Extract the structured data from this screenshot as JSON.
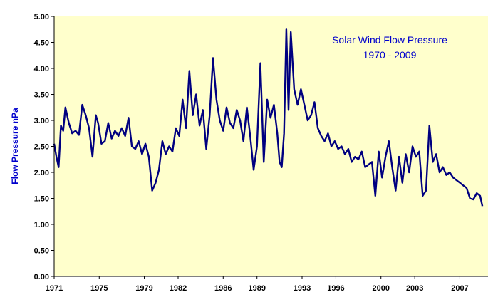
{
  "colors": {
    "background": "#ffffff",
    "plot_background": "#ffffcc",
    "line": "#000080",
    "title": "#0000cc",
    "axis": "#000000"
  },
  "chart_data": {
    "type": "line",
    "title": "Solar Wind Flow Pressure",
    "subtitle": "1970 - 2009",
    "xlabel": "",
    "ylabel": "Flow Pressure nPa",
    "legend": "none",
    "grid": false,
    "xlim": [
      1971,
      2009.5
    ],
    "ylim": [
      0,
      5
    ],
    "y_ticks": [
      "0.00",
      "0.50",
      "1.00",
      "1.50",
      "2.00",
      "2.50",
      "3.00",
      "3.50",
      "4.00",
      "4.50",
      "5.00"
    ],
    "x_tick_labels": [
      "1971",
      "1975",
      "1979",
      "1982",
      "1986",
      "1989",
      "1993",
      "1996",
      "2000",
      "2003",
      "2007"
    ],
    "x_tick_values": [
      1971,
      1975,
      1979,
      1982,
      1986,
      1989,
      1993,
      1996,
      2000,
      2003,
      2007
    ],
    "series": [
      {
        "name": "",
        "x": [
          1971.0,
          1971.2,
          1971.4,
          1971.6,
          1971.8,
          1972.0,
          1972.3,
          1972.6,
          1972.9,
          1973.2,
          1973.5,
          1973.8,
          1974.1,
          1974.4,
          1974.7,
          1974.9,
          1975.2,
          1975.5,
          1975.8,
          1976.1,
          1976.4,
          1976.7,
          1977.0,
          1977.3,
          1977.6,
          1977.9,
          1978.2,
          1978.5,
          1978.8,
          1979.1,
          1979.4,
          1979.7,
          1980.0,
          1980.3,
          1980.6,
          1980.9,
          1981.2,
          1981.5,
          1981.8,
          1982.1,
          1982.4,
          1982.7,
          1983.0,
          1983.3,
          1983.6,
          1983.9,
          1984.2,
          1984.5,
          1984.8,
          1985.1,
          1985.4,
          1985.7,
          1986.0,
          1986.3,
          1986.6,
          1986.9,
          1987.2,
          1987.5,
          1987.8,
          1988.1,
          1988.4,
          1988.7,
          1989.0,
          1989.3,
          1989.6,
          1989.9,
          1990.2,
          1990.5,
          1990.8,
          1991.0,
          1991.2,
          1991.4,
          1991.6,
          1991.8,
          1992.0,
          1992.3,
          1992.6,
          1992.9,
          1993.2,
          1993.5,
          1993.8,
          1994.1,
          1994.4,
          1994.7,
          1995.0,
          1995.3,
          1995.6,
          1995.9,
          1996.2,
          1996.5,
          1996.8,
          1997.1,
          1997.4,
          1997.7,
          1998.0,
          1998.3,
          1998.6,
          1998.9,
          1999.2,
          1999.5,
          1999.8,
          2000.1,
          2000.4,
          2000.7,
          2001.0,
          2001.3,
          2001.6,
          2001.9,
          2002.2,
          2002.5,
          2002.8,
          2003.1,
          2003.4,
          2003.7,
          2004.0,
          2004.3,
          2004.6,
          2004.9,
          2005.2,
          2005.5,
          2005.8,
          2006.1,
          2006.4,
          2006.7,
          2007.0,
          2007.3,
          2007.6,
          2007.9,
          2008.2,
          2008.5,
          2008.8,
          2009.0
        ],
        "values": [
          2.55,
          2.3,
          2.1,
          2.9,
          2.8,
          3.25,
          2.95,
          2.75,
          2.8,
          2.72,
          3.3,
          3.1,
          2.85,
          2.3,
          3.1,
          2.95,
          2.55,
          2.6,
          2.95,
          2.65,
          2.8,
          2.7,
          2.85,
          2.7,
          3.05,
          2.5,
          2.45,
          2.6,
          2.35,
          2.55,
          2.3,
          1.65,
          1.8,
          2.05,
          2.6,
          2.35,
          2.5,
          2.4,
          2.85,
          2.7,
          3.4,
          2.85,
          3.95,
          3.1,
          3.5,
          2.9,
          3.2,
          2.45,
          3.1,
          4.2,
          3.4,
          3.0,
          2.8,
          3.25,
          2.95,
          2.85,
          3.2,
          3.0,
          2.6,
          3.25,
          2.7,
          2.05,
          2.5,
          4.1,
          2.2,
          3.4,
          3.05,
          3.3,
          2.75,
          2.2,
          2.1,
          2.75,
          4.75,
          3.2,
          4.7,
          3.6,
          3.3,
          3.6,
          3.3,
          3.0,
          3.1,
          3.35,
          2.85,
          2.7,
          2.6,
          2.75,
          2.5,
          2.6,
          2.45,
          2.5,
          2.35,
          2.45,
          2.2,
          2.3,
          2.25,
          2.4,
          2.1,
          2.15,
          2.2,
          1.55,
          2.4,
          1.9,
          2.3,
          2.6,
          2.1,
          1.65,
          2.3,
          1.8,
          2.35,
          2.0,
          2.5,
          2.3,
          2.4,
          1.55,
          1.65,
          2.9,
          2.2,
          2.35,
          2.0,
          2.1,
          1.95,
          2.0,
          1.9,
          1.85,
          1.8,
          1.75,
          1.7,
          1.5,
          1.48,
          1.6,
          1.55,
          1.35
        ]
      }
    ]
  }
}
